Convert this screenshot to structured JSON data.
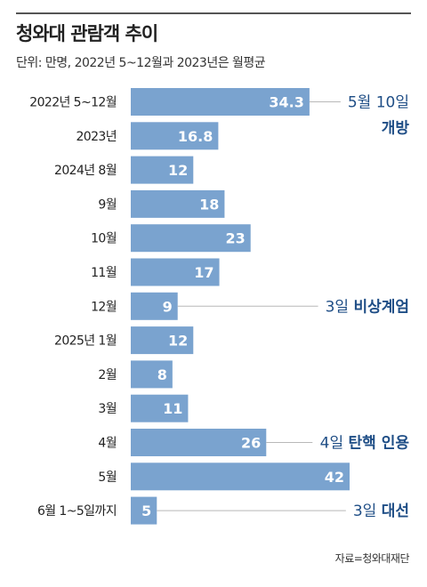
{
  "chart_data": {
    "type": "bar",
    "orientation": "horizontal",
    "title": "청와대 관람객 추이",
    "subtitle": "단위: 만명, 2022년 5~12월과 2023년은 월평균",
    "categories": [
      "2022년 5~12월",
      "2023년",
      "2024년 8월",
      "9월",
      "10월",
      "11월",
      "12월",
      "2025년 1월",
      "2월",
      "3월",
      "4월",
      "5월",
      "6월 1~5일까지"
    ],
    "values": [
      34.3,
      16.8,
      12,
      18,
      23,
      17,
      9,
      12,
      8,
      11,
      26,
      42,
      5
    ],
    "value_labels": [
      "34.3",
      "16.8",
      "12",
      "18",
      "23",
      "17",
      "9",
      "12",
      "8",
      "11",
      "26",
      "42",
      "5"
    ],
    "xlim": [
      0,
      42
    ],
    "annotations": [
      {
        "category_index": 0,
        "text": "5월 10일",
        "bold_text": "개방",
        "two_line": true
      },
      {
        "category_index": 6,
        "text": "3일",
        "bold_text": "비상계엄",
        "two_line": false
      },
      {
        "category_index": 10,
        "text": "4일",
        "bold_text": "탄핵 인용",
        "two_line": false
      },
      {
        "category_index": 12,
        "text": "3일",
        "bold_text": "대선",
        "two_line": false
      }
    ],
    "bar_color": "#7aa3cf",
    "label_color": "#ffffff",
    "annotation_color": "#1f4e86",
    "leader_color": "#b8b8b8"
  },
  "source": "자료=청와대재단"
}
